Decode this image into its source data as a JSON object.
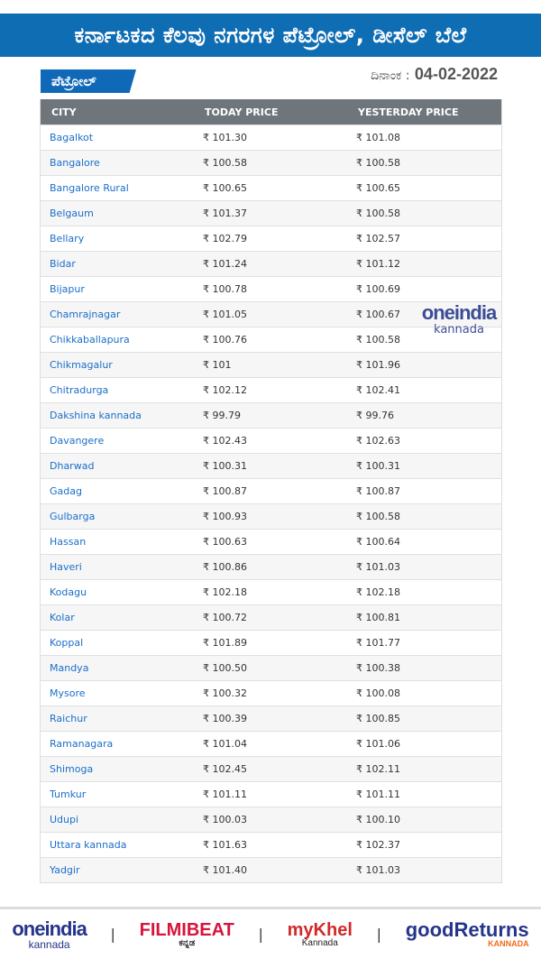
{
  "header": {
    "title": "ಕರ್ನಾಟಕದ ಕೆಲವು ನಗರಗಳ ಪೆಟ್ರೋಲ್, ಡೀಸೆಲ್ ಬೆಲೆ"
  },
  "section": {
    "tag": "ಪೆಟ್ರೋಲ್",
    "date_label": "ದಿನಾಂಕ :",
    "date": "04-02-2022"
  },
  "table": {
    "columns": [
      "CITY",
      "TODAY PRICE",
      "YESTERDAY PRICE"
    ],
    "rows": [
      [
        "Bagalkot",
        "₹ 101.30",
        "₹ 101.08"
      ],
      [
        "Bangalore",
        "₹ 100.58",
        "₹ 100.58"
      ],
      [
        "Bangalore Rural",
        "₹ 100.65",
        "₹ 100.65"
      ],
      [
        "Belgaum",
        "₹ 101.37",
        "₹ 100.58"
      ],
      [
        "Bellary",
        "₹ 102.79",
        "₹ 102.57"
      ],
      [
        "Bidar",
        "₹ 101.24",
        "₹ 101.12"
      ],
      [
        "Bijapur",
        "₹ 100.78",
        "₹ 100.69"
      ],
      [
        "Chamrajnagar",
        "₹ 101.05",
        "₹ 100.67"
      ],
      [
        "Chikkaballapura",
        "₹ 100.76",
        "₹ 100.58"
      ],
      [
        "Chikmagalur",
        "₹ 101",
        "₹ 101.96"
      ],
      [
        "Chitradurga",
        "₹ 102.12",
        "₹ 102.41"
      ],
      [
        "Dakshina kannada",
        "₹ 99.79",
        "₹ 99.76"
      ],
      [
        "Davangere",
        "₹ 102.43",
        "₹ 102.63"
      ],
      [
        "Dharwad",
        "₹ 100.31",
        "₹ 100.31"
      ],
      [
        "Gadag",
        "₹ 100.87",
        "₹ 100.87"
      ],
      [
        "Gulbarga",
        "₹ 100.93",
        "₹ 100.58"
      ],
      [
        "Hassan",
        "₹ 100.63",
        "₹ 100.64"
      ],
      [
        "Haveri",
        "₹ 100.86",
        "₹ 101.03"
      ],
      [
        "Kodagu",
        "₹ 102.18",
        "₹ 102.18"
      ],
      [
        "Kolar",
        "₹ 100.72",
        "₹ 100.81"
      ],
      [
        "Koppal",
        "₹ 101.89",
        "₹ 101.77"
      ],
      [
        "Mandya",
        "₹ 100.50",
        "₹ 100.38"
      ],
      [
        "Mysore",
        "₹ 100.32",
        "₹ 100.08"
      ],
      [
        "Raichur",
        "₹ 100.39",
        "₹ 100.85"
      ],
      [
        "Ramanagara",
        "₹ 101.04",
        "₹ 101.06"
      ],
      [
        "Shimoga",
        "₹ 102.45",
        "₹ 102.11"
      ],
      [
        "Tumkur",
        "₹ 101.11",
        "₹ 101.11"
      ],
      [
        "Udupi",
        "₹ 100.03",
        "₹ 100.10"
      ],
      [
        "Uttara kannada",
        "₹ 101.63",
        "₹ 102.37"
      ],
      [
        "Yadgir",
        "₹ 101.40",
        "₹ 101.03"
      ]
    ]
  },
  "watermark": {
    "brand": "oneindia",
    "sub": "kannada"
  },
  "footer": {
    "logos": [
      {
        "main": "oneindia",
        "sub": "kannada"
      },
      {
        "main": "FILMIBEAT",
        "sub": "ಕನ್ನಡ"
      },
      {
        "main": "myKhel",
        "sub": "Kannada"
      },
      {
        "main": "goodReturns",
        "sub": "KANNADA"
      }
    ],
    "separator": "|"
  },
  "colors": {
    "banner": "#0f6db4",
    "table_header": "#6e767b",
    "city_link": "#1a6fc9"
  }
}
